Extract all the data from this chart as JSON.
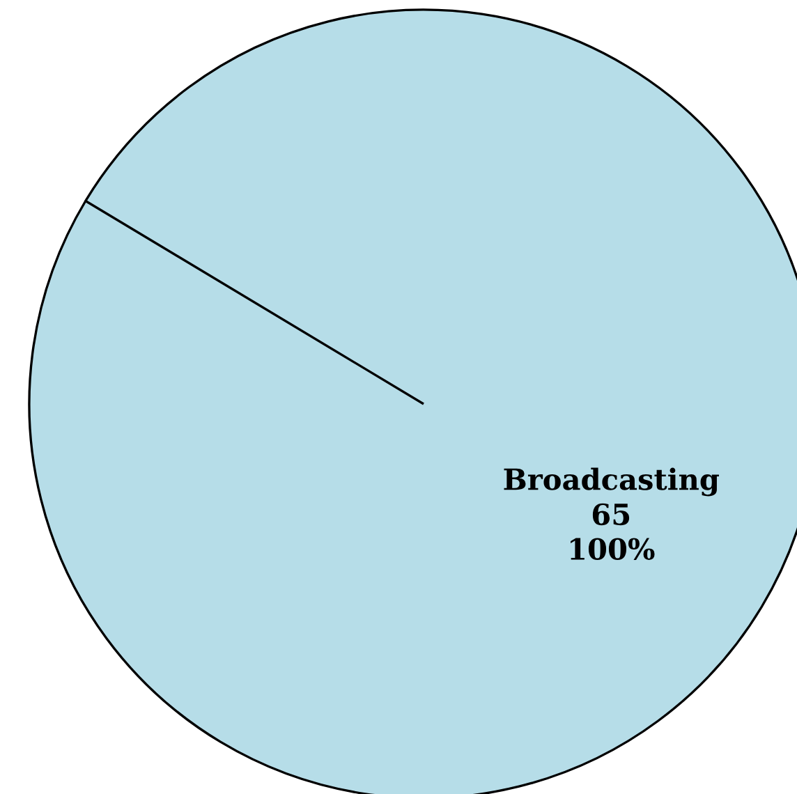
{
  "chart_data": {
    "type": "pie",
    "categories": [
      "Broadcasting"
    ],
    "values": [
      65
    ],
    "data_labels": true,
    "annotations": [
      "100%"
    ],
    "colors": [
      "#b6dde8"
    ],
    "legend": false
  }
}
